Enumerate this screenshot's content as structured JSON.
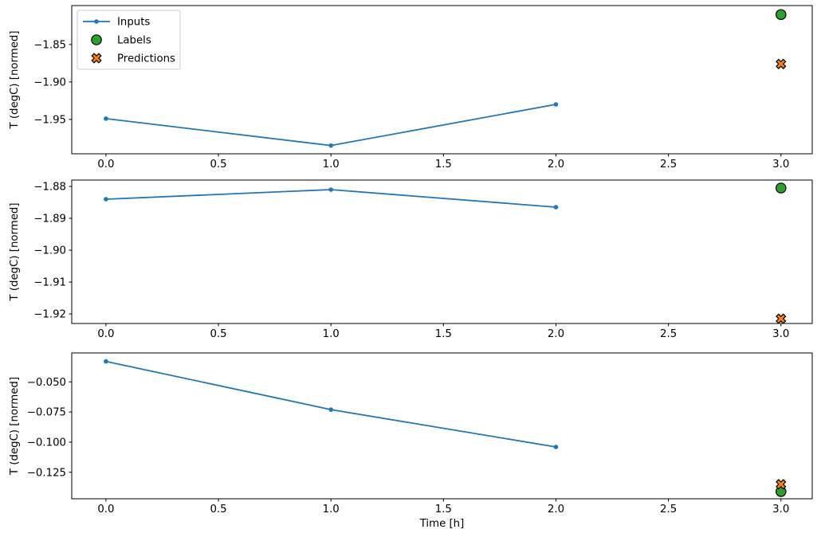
{
  "figure": {
    "background": "#ffffff",
    "text_color": "#000000",
    "spine_color": "#000000"
  },
  "chart_data": [
    {
      "id": "window-1",
      "type": "line",
      "title": "",
      "xlabel": "",
      "ylabel": "T (degC) [normed]",
      "grid": false,
      "xlim": [
        -0.152,
        3.139
      ],
      "ylim": [
        -1.996,
        -1.798
      ],
      "xticks": {
        "values": [
          0.0,
          0.5,
          1.0,
          1.5,
          2.0,
          2.5,
          3.0
        ],
        "labels": [
          "0.0",
          "0.5",
          "1.0",
          "1.5",
          "2.0",
          "2.5",
          "3.0"
        ]
      },
      "yticks": {
        "values": [
          -1.85,
          -1.9,
          -1.95
        ],
        "labels": [
          "−1.85",
          "−1.90",
          "−1.95"
        ]
      },
      "legend": {
        "visible": true,
        "position": "upper left",
        "entries": [
          "Inputs",
          "Labels",
          "Predictions"
        ]
      },
      "series": [
        {
          "name": "Inputs",
          "kind": "line",
          "marker": "dot",
          "color": "#1f77b4",
          "x": [
            0,
            1,
            2
          ],
          "y": [
            -1.949,
            -1.985,
            -1.93
          ]
        },
        {
          "name": "Labels",
          "kind": "scatter",
          "marker": "circle",
          "color": "#2ca02c",
          "edge": "#000000",
          "x": [
            3
          ],
          "y": [
            -1.81
          ]
        },
        {
          "name": "Predictions",
          "kind": "scatter",
          "marker": "X",
          "color": "#ff7f0e",
          "edge": "#000000",
          "x": [
            3
          ],
          "y": [
            -1.876
          ]
        }
      ]
    },
    {
      "id": "window-2",
      "type": "line",
      "title": "",
      "xlabel": "",
      "ylabel": "T (degC) [normed]",
      "grid": false,
      "xlim": [
        -0.152,
        3.139
      ],
      "ylim": [
        -1.923,
        -1.878
      ],
      "xticks": {
        "values": [
          0.0,
          0.5,
          1.0,
          1.5,
          2.0,
          2.5,
          3.0
        ],
        "labels": [
          "0.0",
          "0.5",
          "1.0",
          "1.5",
          "2.0",
          "2.5",
          "3.0"
        ]
      },
      "yticks": {
        "values": [
          -1.88,
          -1.89,
          -1.9,
          -1.91,
          -1.92
        ],
        "labels": [
          "−1.88",
          "−1.89",
          "−1.90",
          "−1.91",
          "−1.92"
        ]
      },
      "legend": {
        "visible": false,
        "position": "",
        "entries": []
      },
      "series": [
        {
          "name": "Inputs",
          "kind": "line",
          "marker": "dot",
          "color": "#1f77b4",
          "x": [
            0,
            1,
            2
          ],
          "y": [
            -1.884,
            -1.881,
            -1.8865
          ]
        },
        {
          "name": "Labels",
          "kind": "scatter",
          "marker": "circle",
          "color": "#2ca02c",
          "edge": "#000000",
          "x": [
            3
          ],
          "y": [
            -1.8805
          ]
        },
        {
          "name": "Predictions",
          "kind": "scatter",
          "marker": "X",
          "color": "#ff7f0e",
          "edge": "#000000",
          "x": [
            3
          ],
          "y": [
            -1.9215
          ]
        }
      ]
    },
    {
      "id": "window-3",
      "type": "line",
      "title": "",
      "xlabel": "Time [h]",
      "ylabel": "T (degC) [normed]",
      "grid": false,
      "xlim": [
        -0.152,
        3.139
      ],
      "ylim": [
        -0.147,
        -0.026
      ],
      "xticks": {
        "values": [
          0.0,
          0.5,
          1.0,
          1.5,
          2.0,
          2.5,
          3.0
        ],
        "labels": [
          "0.0",
          "0.5",
          "1.0",
          "1.5",
          "2.0",
          "2.5",
          "3.0"
        ]
      },
      "yticks": {
        "values": [
          -0.05,
          -0.075,
          -0.1,
          -0.125
        ],
        "labels": [
          "−0.050",
          "−0.075",
          "−0.100",
          "−0.125"
        ]
      },
      "legend": {
        "visible": false,
        "position": "",
        "entries": []
      },
      "series": [
        {
          "name": "Inputs",
          "kind": "line",
          "marker": "dot",
          "color": "#1f77b4",
          "x": [
            0,
            1,
            2
          ],
          "y": [
            -0.033,
            -0.073,
            -0.104
          ]
        },
        {
          "name": "Labels",
          "kind": "scatter",
          "marker": "circle",
          "color": "#2ca02c",
          "edge": "#000000",
          "x": [
            3
          ],
          "y": [
            -0.141
          ]
        },
        {
          "name": "Predictions",
          "kind": "scatter",
          "marker": "X",
          "color": "#ff7f0e",
          "edge": "#000000",
          "x": [
            3
          ],
          "y": [
            -0.135
          ]
        }
      ]
    }
  ]
}
